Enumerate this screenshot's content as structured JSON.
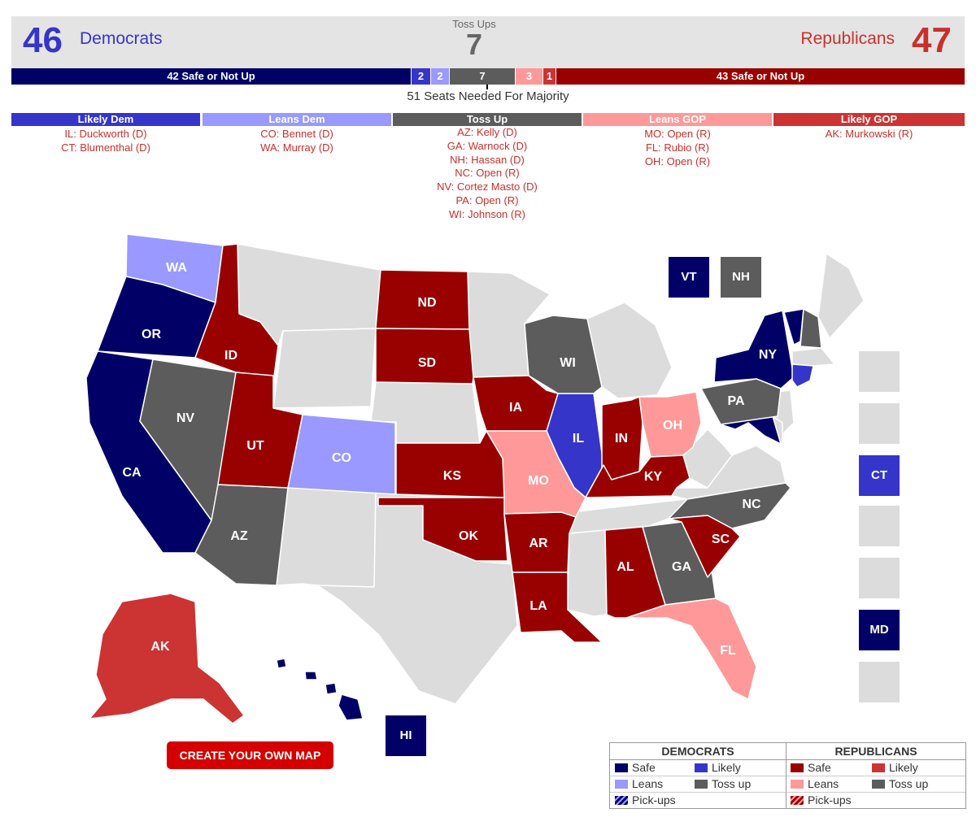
{
  "header": {
    "dem_count": "46",
    "dem_label": "Democrats",
    "tossup_label": "Toss Ups",
    "tossup_count": "7",
    "rep_label": "Republicans",
    "rep_count": "47"
  },
  "bar": {
    "dem_safe": "42 Safe or Not Up",
    "dem_likely": "2",
    "dem_leans": "2",
    "tossup": "7",
    "rep_leans": "3",
    "rep_likely": "1",
    "rep_safe": "43 Safe or Not Up",
    "majority": "51 Seats Needed For Majority"
  },
  "colors": {
    "dem_safe": "#000066",
    "dem_likely": "#3535c9",
    "dem_leans": "#9999ff",
    "tossup": "#5c5c5c",
    "rep_leans": "#ff9999",
    "rep_likely": "#cc3333",
    "rep_safe": "#990000",
    "no_race": "#dcdcdc"
  },
  "categories": [
    {
      "title": "Likely Dem",
      "items": [
        "IL: Duckworth (D)",
        "CT: Blumenthal (D)"
      ]
    },
    {
      "title": "Leans Dem",
      "items": [
        "CO: Bennet (D)",
        "WA: Murray (D)"
      ]
    },
    {
      "title": "Toss Up",
      "items": [
        "AZ: Kelly (D)",
        "GA: Warnock (D)",
        "NH: Hassan (D)",
        "NC: Open (R)",
        "NV: Cortez Masto (D)",
        "PA: Open (R)",
        "WI: Johnson (R)"
      ]
    },
    {
      "title": "Leans GOP",
      "items": [
        "MO: Open (R)",
        "FL: Rubio (R)",
        "OH: Open (R)"
      ]
    },
    {
      "title": "Likely GOP",
      "items": [
        "AK: Murkowski (R)"
      ]
    }
  ],
  "map": {
    "state_labels": {
      "WA": "WA",
      "OR": "OR",
      "CA": "CA",
      "ID": "ID",
      "NV": "NV",
      "UT": "UT",
      "AZ": "AZ",
      "CO": "CO",
      "ND": "ND",
      "SD": "SD",
      "KS": "KS",
      "OK": "OK",
      "IA": "IA",
      "MO": "MO",
      "AR": "AR",
      "LA": "LA",
      "WI": "WI",
      "IL": "IL",
      "IN": "IN",
      "OH": "OH",
      "KY": "KY",
      "NC": "NC",
      "SC": "SC",
      "GA": "GA",
      "AL": "AL",
      "FL": "FL",
      "PA": "PA",
      "NY": "NY",
      "AK": "AK"
    },
    "side_boxes": {
      "VT": "VT",
      "NH": "NH",
      "CT": "CT",
      "MD": "MD",
      "HI": "HI"
    }
  },
  "cta": "CREATE YOUR OWN MAP",
  "legend": {
    "dem_title": "DEMOCRATS",
    "rep_title": "REPUBLICANS",
    "safe": "Safe",
    "likely": "Likely",
    "leans": "Leans",
    "tossup": "Toss up",
    "pickups": "Pick-ups"
  }
}
